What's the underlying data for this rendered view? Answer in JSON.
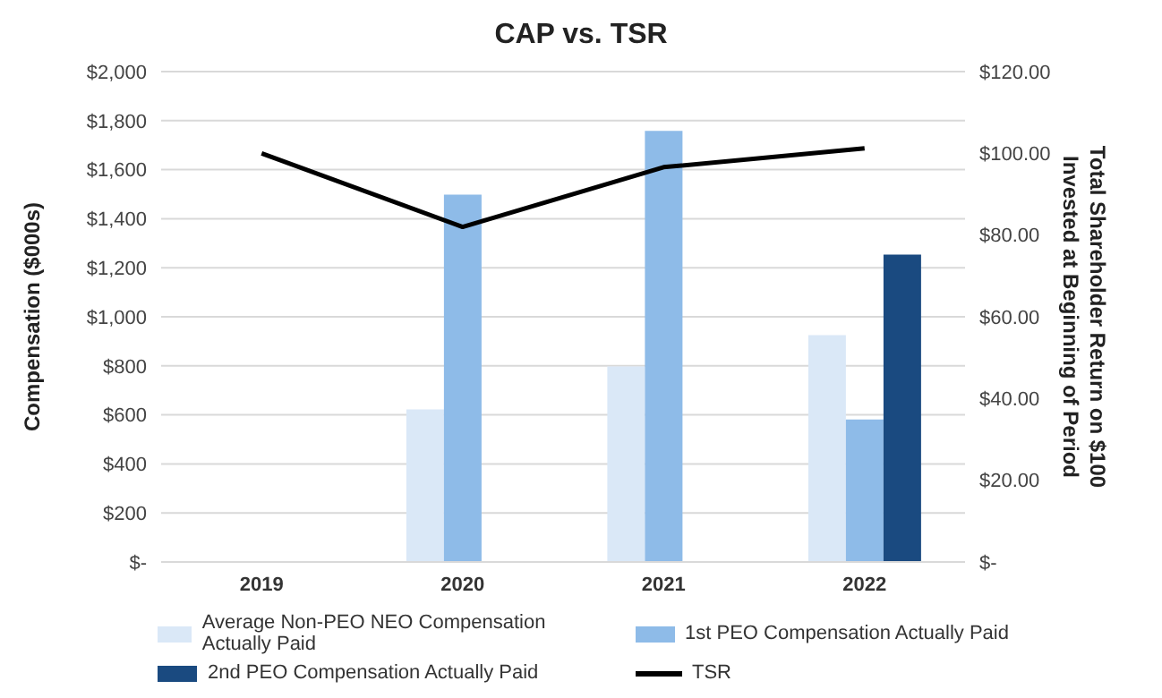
{
  "chart_data": {
    "type": "bar",
    "title": "CAP vs. TSR",
    "ylabel": "Compensation ($000s)",
    "y2label": "Total Shareholder Return on $100 Invested at Beginning of Period",
    "categories": [
      "2019",
      "2020",
      "2021",
      "2022"
    ],
    "series": [
      {
        "name": "Average Non-PEO NEO Compensation Actually Paid",
        "color": "#dae8f7",
        "values": [
          null,
          622,
          797,
          925
        ]
      },
      {
        "name": "1st PEO Compensation Actually Paid",
        "color": "#8ebbe8",
        "values": [
          null,
          1498,
          1758,
          581
        ]
      },
      {
        "name": "2nd PEO Compensation Actually Paid",
        "color": "#1a4a80",
        "values": [
          null,
          null,
          null,
          1254
        ]
      },
      {
        "name": "TSR",
        "type": "line",
        "axis": "y2",
        "color": "#000000",
        "values": [
          100,
          82,
          96.6,
          101.2
        ]
      }
    ],
    "ylim": [
      0,
      2000
    ],
    "yticks": [
      {
        "value": 0,
        "label": "$-"
      },
      {
        "value": 200,
        "label": "$200"
      },
      {
        "value": 400,
        "label": "$400"
      },
      {
        "value": 600,
        "label": "$600"
      },
      {
        "value": 800,
        "label": "$800"
      },
      {
        "value": 1000,
        "label": "$1,000"
      },
      {
        "value": 1200,
        "label": "$1,200"
      },
      {
        "value": 1400,
        "label": "$1,400"
      },
      {
        "value": 1600,
        "label": "$1,600"
      },
      {
        "value": 1800,
        "label": "$1,800"
      },
      {
        "value": 2000,
        "label": "$2,000"
      }
    ],
    "y2lim": [
      0,
      120
    ],
    "y2ticks": [
      {
        "value": 0,
        "label": "$-"
      },
      {
        "value": 20,
        "label": "$20.00"
      },
      {
        "value": 40,
        "label": "$40.00"
      },
      {
        "value": 60,
        "label": "$60.00"
      },
      {
        "value": 80,
        "label": "$80.00"
      },
      {
        "value": 100,
        "label": "$100.00"
      },
      {
        "value": 120,
        "label": "$120.00"
      }
    ],
    "grid": "y",
    "legend": "bottom",
    "marker": "none"
  }
}
